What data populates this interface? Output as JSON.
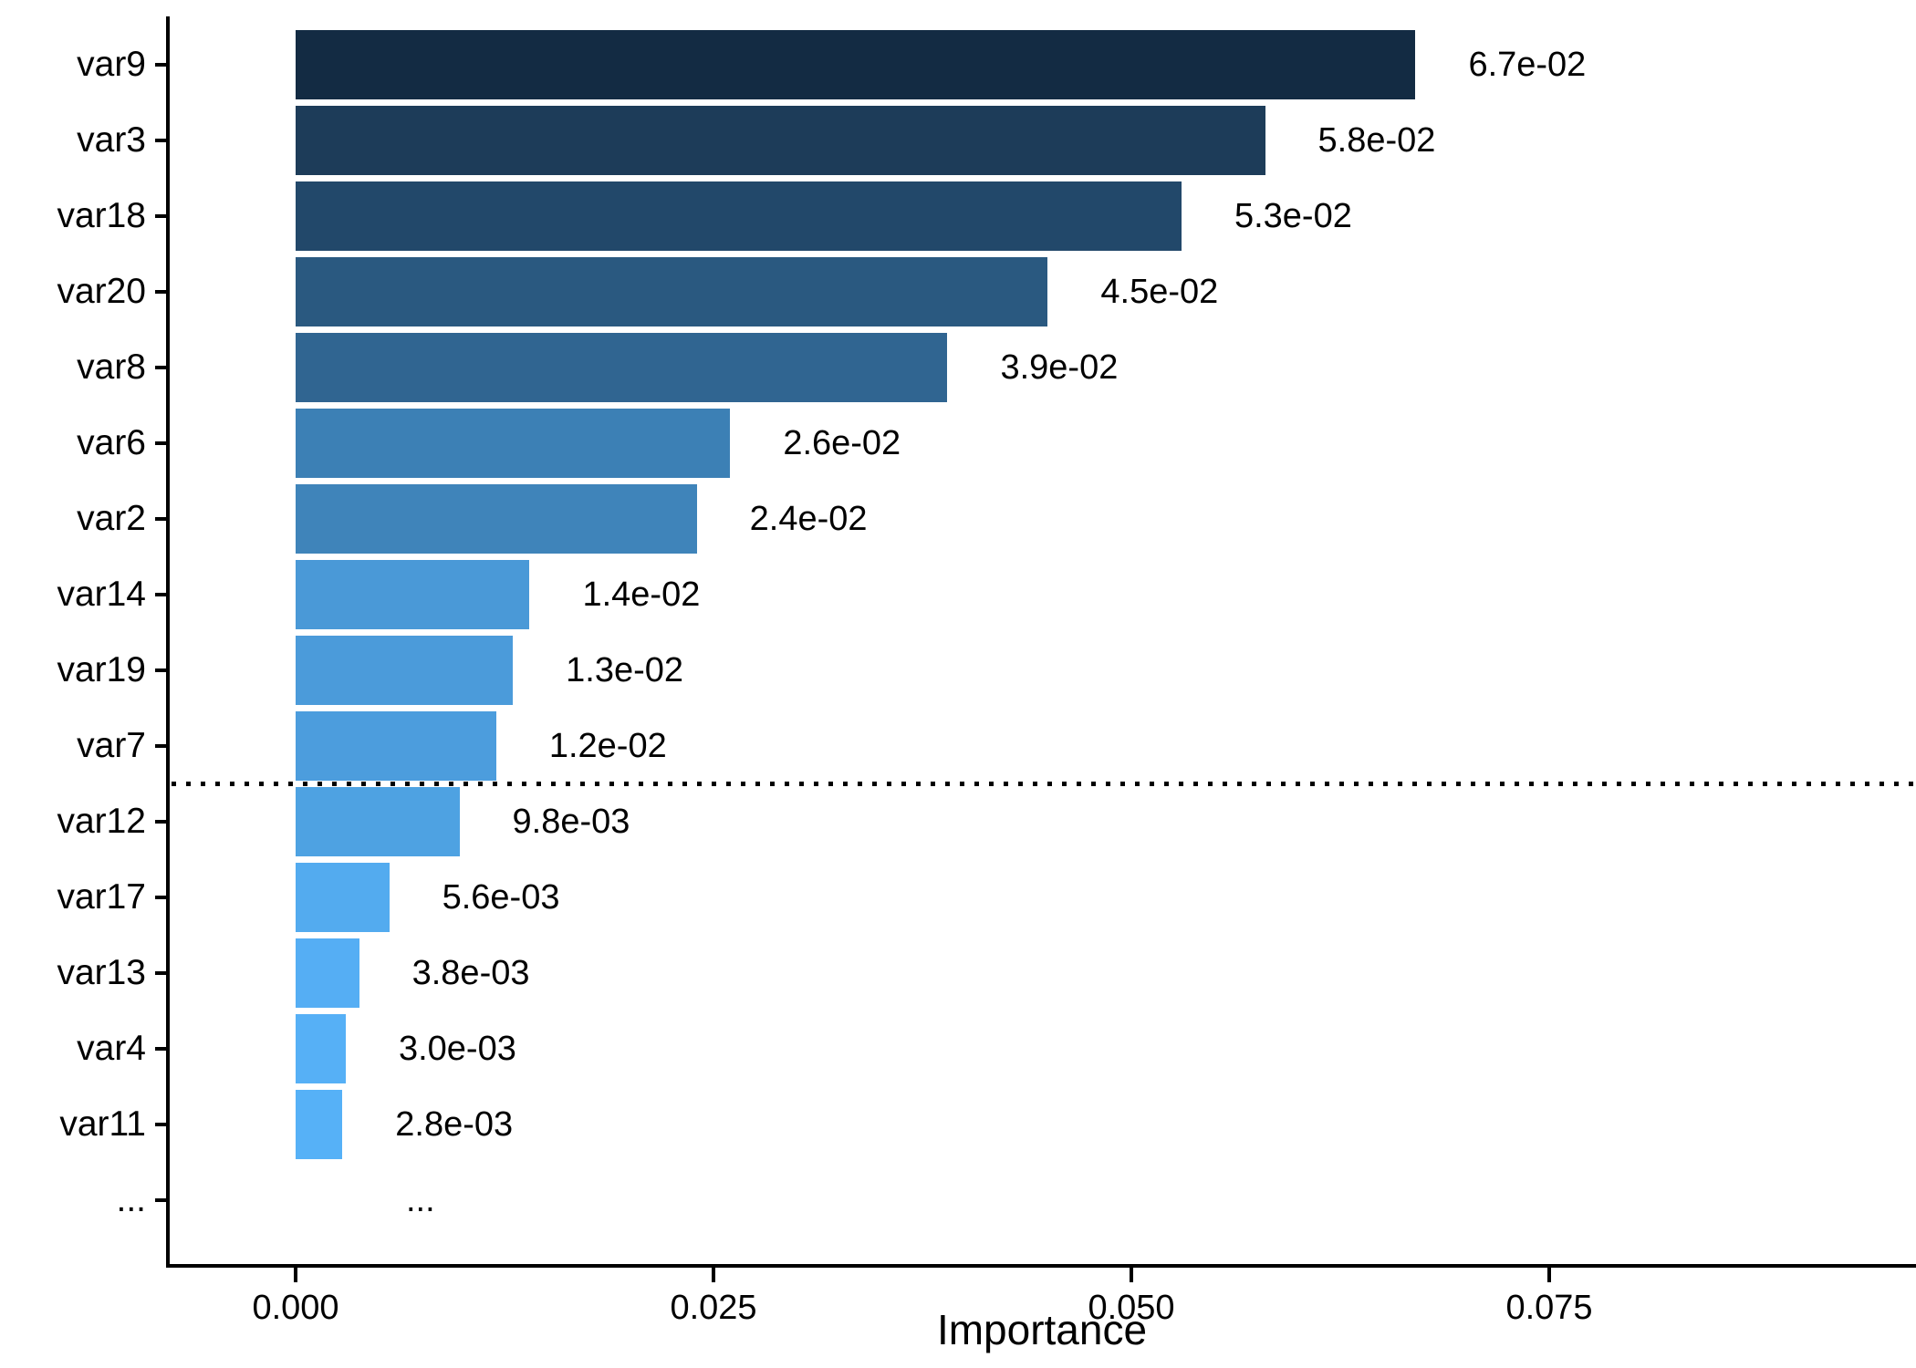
{
  "chart_data": {
    "type": "bar",
    "orientation": "horizontal",
    "title": "",
    "xlabel": "Importance",
    "ylabel": "",
    "grid": "off",
    "legend": "none",
    "xlim": [
      -0.0075,
      0.097
    ],
    "x_ticks": [
      {
        "label": "0.000",
        "value": 0.0
      },
      {
        "label": "0.025",
        "value": 0.025
      },
      {
        "label": "0.050",
        "value": 0.05
      },
      {
        "label": "0.075",
        "value": 0.075
      }
    ],
    "bars": [
      {
        "category": "var9",
        "value": 0.067,
        "value_label": "6.7e-02",
        "color": "#132B43"
      },
      {
        "category": "var3",
        "value": 0.058,
        "value_label": "5.8e-02",
        "color": "#1D3C59"
      },
      {
        "category": "var18",
        "value": 0.053,
        "value_label": "5.3e-02",
        "color": "#22486A"
      },
      {
        "category": "var20",
        "value": 0.045,
        "value_label": "4.5e-02",
        "color": "#2A5980"
      },
      {
        "category": "var8",
        "value": 0.039,
        "value_label": "3.9e-02",
        "color": "#306591"
      },
      {
        "category": "var6",
        "value": 0.026,
        "value_label": "2.6e-02",
        "color": "#3C80B5"
      },
      {
        "category": "var2",
        "value": 0.024,
        "value_label": "2.4e-02",
        "color": "#3F84BA"
      },
      {
        "category": "var14",
        "value": 0.014,
        "value_label": "1.4e-02",
        "color": "#4A99D7"
      },
      {
        "category": "var19",
        "value": 0.013,
        "value_label": "1.3e-02",
        "color": "#4B9BDA"
      },
      {
        "category": "var7",
        "value": 0.012,
        "value_label": "1.2e-02",
        "color": "#4C9DDD"
      },
      {
        "category": "var12",
        "value": 0.0098,
        "value_label": "9.8e-03",
        "color": "#4EA2E2"
      },
      {
        "category": "var17",
        "value": 0.0056,
        "value_label": "5.6e-03",
        "color": "#53ABEF"
      },
      {
        "category": "var13",
        "value": 0.0038,
        "value_label": "3.8e-03",
        "color": "#55AEF4"
      },
      {
        "category": "var4",
        "value": 0.003,
        "value_label": "3.0e-03",
        "color": "#56B0F6"
      },
      {
        "category": "var11",
        "value": 0.0028,
        "value_label": "2.8e-03",
        "color": "#56B1F7"
      },
      {
        "category": "...",
        "value": null,
        "value_label": "...",
        "color": null
      }
    ],
    "threshold_line": {
      "style": "dotted",
      "color": "#000000",
      "between_categories": [
        "var7",
        "var12"
      ],
      "after_bar_index": 9
    },
    "gradient": {
      "high_value_color": "#132B43",
      "low_value_color": "#56B1F7"
    },
    "axis_color": "#000000",
    "text_color": "#000000"
  }
}
